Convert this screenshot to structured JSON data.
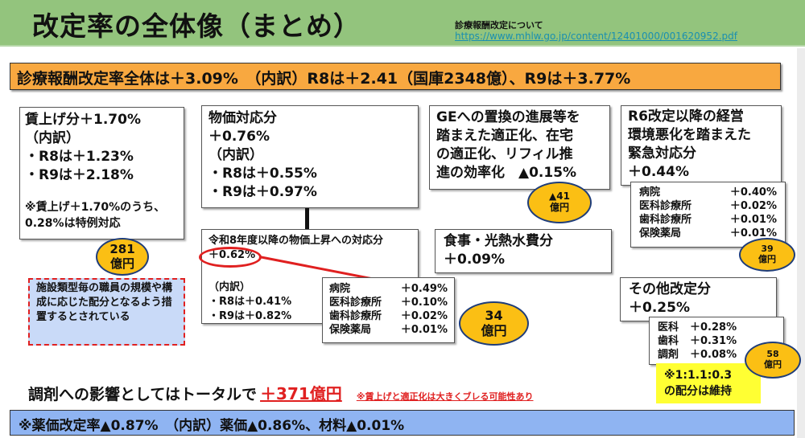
{
  "header": {
    "title": "改定率の全体像（まとめ）",
    "reference_label": "診療報酬改定について",
    "reference_link": "https://www.mhlw.go.jp/content/12401000/001620952.pdf",
    "bg_color": "#93c47d"
  },
  "total_banner": {
    "text": "診療報酬改定率全体は＋3.09%　（内訳）R8は＋2.41（国庫2348億）、R9は＋3.77%",
    "bg_color": "#f8a840"
  },
  "wage_box": {
    "title": "賃上げ分＋1.70%",
    "breakdown_label": "（内訳）",
    "lines": [
      "・R8は＋1.23%",
      "・R9は＋2.18%"
    ],
    "note_lines": [
      "※賃上げ＋1.70%のうち、",
      "0.28%は特例対応"
    ],
    "badge": {
      "amount": "281",
      "unit": "億円"
    }
  },
  "facility_note": {
    "text": "施設類型毎の職員の規模や構成に応じた配分となるよう措置するとされている"
  },
  "price_box": {
    "title": "物価対応分",
    "value": "＋0.76%",
    "breakdown_label": "（内訳）",
    "lines": [
      "・R8は＋0.55%",
      "・R9は＋0.97%"
    ]
  },
  "price_sub_box": {
    "title": "令和8年度以降の物価上昇への対応分",
    "value": "＋0.62%",
    "breakdown_label": "（内訳）",
    "lines": [
      "・R8は＋0.41%",
      "・R9は＋0.82%"
    ]
  },
  "price_detail": {
    "rows": [
      {
        "label": "病院",
        "value": "＋0.49%"
      },
      {
        "label": "医科診療所",
        "value": "＋0.10%"
      },
      {
        "label": "歯科診療所",
        "value": "＋0.02%"
      },
      {
        "label": "保険薬局",
        "value": "＋0.01%"
      }
    ],
    "badge": {
      "amount": "34",
      "unit": "億円"
    }
  },
  "ge_box": {
    "lines": [
      "GEへの置換の進展等を",
      "踏まえた適正化、在宅",
      "の適正化、リフィル推",
      "進の効率化　▲0.15%"
    ],
    "badge": {
      "amount": "▲41",
      "unit": "億円"
    }
  },
  "meal_box": {
    "title": "食事・光熱水費分",
    "value": "＋0.09%"
  },
  "emergency_box": {
    "lines": [
      "R6改定以降の経営",
      "環境悪化を踏まえた",
      "緊急対応分"
    ],
    "value": "＋0.44%",
    "rows": [
      {
        "label": "病院",
        "value": "＋0.40%"
      },
      {
        "label": "医科診療所",
        "value": "＋0.02%"
      },
      {
        "label": "歯科診療所",
        "value": "＋0.01%"
      },
      {
        "label": "保険薬局",
        "value": "＋0.01%"
      }
    ],
    "badge": {
      "amount": "39",
      "unit": "億円"
    }
  },
  "other_box": {
    "title": "その他改定分",
    "value": "＋0.25%",
    "rows": [
      {
        "label": "医科",
        "value": "＋0.28%"
      },
      {
        "label": "歯科",
        "value": "＋0.31%"
      },
      {
        "label": "調剤",
        "value": "＋0.08%"
      }
    ],
    "badge": {
      "amount": "58",
      "unit": "億円"
    },
    "ratio_note_lines": [
      "※1:1.1:0.3",
      "の配分は維持"
    ]
  },
  "impact": {
    "text": "調剤への影響としてはトータルで",
    "amount": "＋371億円",
    "caveat": "※賃上げと適正化は大きくブレる可能性あり",
    "accent_color": "#e02020"
  },
  "drug_banner": {
    "text": "※薬価改定率▲0.87%　（内訳）薬価▲0.86%、材料▲0.01%",
    "bg_color": "#8fb4f2"
  }
}
